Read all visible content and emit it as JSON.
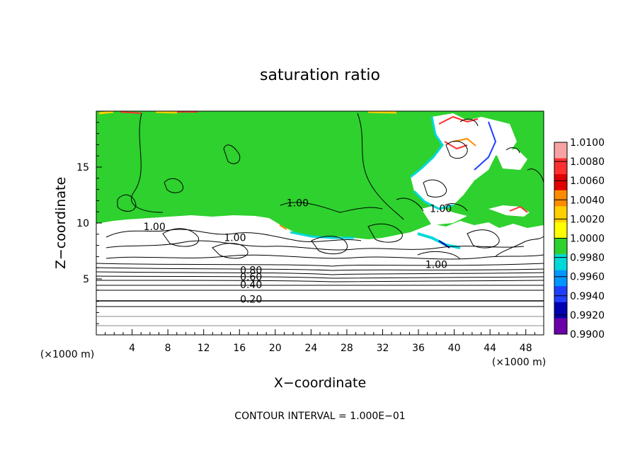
{
  "chart_data": {
    "type": "heatmap",
    "title": "saturation ratio",
    "xlabel": "X−coordinate",
    "ylabel": "Z−coordinate",
    "x_unit_left": "(×1000 m)",
    "x_unit_right": "(×1000 m)",
    "xlim": [
      0,
      50
    ],
    "ylim": [
      0,
      20
    ],
    "x_ticks": [
      4,
      8,
      12,
      16,
      20,
      24,
      28,
      32,
      36,
      40,
      44,
      48
    ],
    "y_ticks": [
      5,
      10,
      15
    ],
    "footer": "CONTOUR INTERVAL = 1.000E−01",
    "colorbar": {
      "levels": [
        "1.0100",
        "1.0080",
        "1.0060",
        "1.0040",
        "1.0020",
        "1.0000",
        "0.9980",
        "0.9960",
        "0.9940",
        "0.9920",
        "0.9900"
      ],
      "colors": [
        "#f7a3a3",
        "#ff3030",
        "#e00000",
        "#ff8c00",
        "#ffd000",
        "#ffff00",
        "#2ed12e",
        "#00d9d9",
        "#0096ff",
        "#1f3fff",
        "#0000b0",
        "#6a00a8"
      ]
    },
    "contour_labels": [
      {
        "text": "1.00",
        "x": 22.5,
        "y": 11.6
      },
      {
        "text": "1.00",
        "x": 6.5,
        "y": 9.5
      },
      {
        "text": "1.00",
        "x": 15.5,
        "y": 8.5
      },
      {
        "text": "1.00",
        "x": 38.5,
        "y": 11.1
      },
      {
        "text": "1.00",
        "x": 38.0,
        "y": 6.1
      },
      {
        "text": "0.80",
        "x": 17.3,
        "y": 5.6
      },
      {
        "text": "0.60",
        "x": 17.3,
        "y": 5.0
      },
      {
        "text": "0.40",
        "x": 17.3,
        "y": 4.3
      },
      {
        "text": "0.20",
        "x": 17.3,
        "y": 3.0
      }
    ]
  }
}
